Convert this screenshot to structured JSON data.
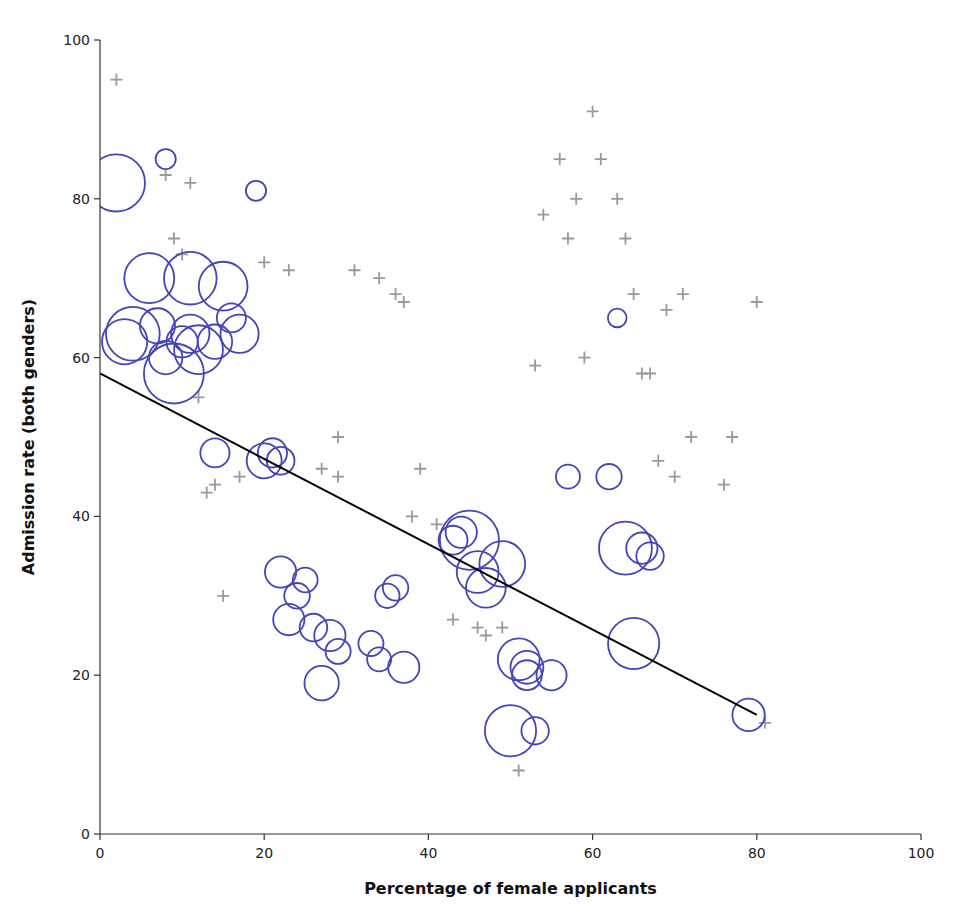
{
  "chart_data": {
    "type": "scatter",
    "xlabel": "Percentage of female applicants",
    "ylabel": "Admission rate (both genders)",
    "xlim": [
      0,
      100
    ],
    "ylim": [
      0,
      100
    ],
    "xticks": [
      0,
      20,
      40,
      60,
      80,
      100
    ],
    "yticks": [
      0,
      20,
      40,
      60,
      80,
      100
    ],
    "series": [
      {
        "marker": "circle",
        "color": "#4444BB",
        "x": [
          2,
          3,
          4,
          6,
          7,
          8,
          8,
          9,
          10,
          11,
          11,
          12,
          14,
          15,
          16,
          17,
          19,
          14,
          20,
          21,
          22,
          22,
          23,
          24,
          25,
          26,
          27,
          28,
          29,
          33,
          34,
          35,
          36,
          37,
          43,
          44,
          45,
          46,
          47,
          49,
          50,
          51,
          52,
          52,
          53,
          55,
          57,
          62,
          63,
          64,
          65,
          66,
          67,
          79
        ],
        "values": [
          82,
          62,
          63,
          70,
          64,
          85,
          60,
          58,
          62,
          63,
          70,
          61,
          62,
          69,
          65,
          63,
          81,
          48,
          47,
          48,
          47,
          33,
          27,
          30,
          32,
          26,
          19,
          25,
          23,
          24,
          22,
          30,
          31,
          21,
          37,
          38,
          37,
          33,
          31,
          34,
          13,
          22,
          21,
          20,
          13,
          20,
          45,
          45,
          65,
          36,
          24,
          36,
          35,
          15
        ],
        "sizes": [
          933,
          585,
          825,
          714,
          353,
          116,
          320,
          1029,
          280,
          420,
          792,
          682,
          340,
          680,
          242,
          417,
          116,
          243,
          350,
          244,
          220,
          280,
          280,
          188,
          175,
          218,
          338,
          280,
          180,
          180,
          165,
          170,
          185,
          280,
          240,
          280,
          1000,
          500,
          450,
          600,
          750,
          500,
          310,
          255,
          215,
          260,
          165,
          185,
          100,
          800,
          750,
          280,
          215,
          300
        ]
      },
      {
        "marker": "plus",
        "color": "#999999",
        "x": [
          2,
          8,
          9,
          10,
          11,
          12,
          13,
          14,
          15,
          17,
          20,
          23,
          27,
          29,
          29,
          31,
          34,
          36,
          37,
          38,
          39,
          41,
          43,
          46,
          47,
          49,
          51,
          53,
          54,
          56,
          57,
          58,
          59,
          60,
          61,
          63,
          64,
          65,
          66,
          67,
          68,
          69,
          70,
          71,
          72,
          76,
          77,
          80,
          81
        ],
        "values": [
          95,
          83,
          75,
          73,
          82,
          55,
          43,
          44,
          30,
          45,
          72,
          71,
          46,
          50,
          45,
          71,
          70,
          68,
          67,
          40,
          46,
          39,
          27,
          26,
          25,
          26,
          8,
          59,
          78,
          85,
          75,
          80,
          60,
          91,
          85,
          80,
          75,
          68,
          58,
          58,
          47,
          66,
          45,
          68,
          50,
          44,
          50,
          67,
          14
        ]
      },
      {
        "type": "line",
        "color": "black",
        "x": [
          0,
          80
        ],
        "values": [
          58.0,
          15.0
        ]
      }
    ]
  }
}
